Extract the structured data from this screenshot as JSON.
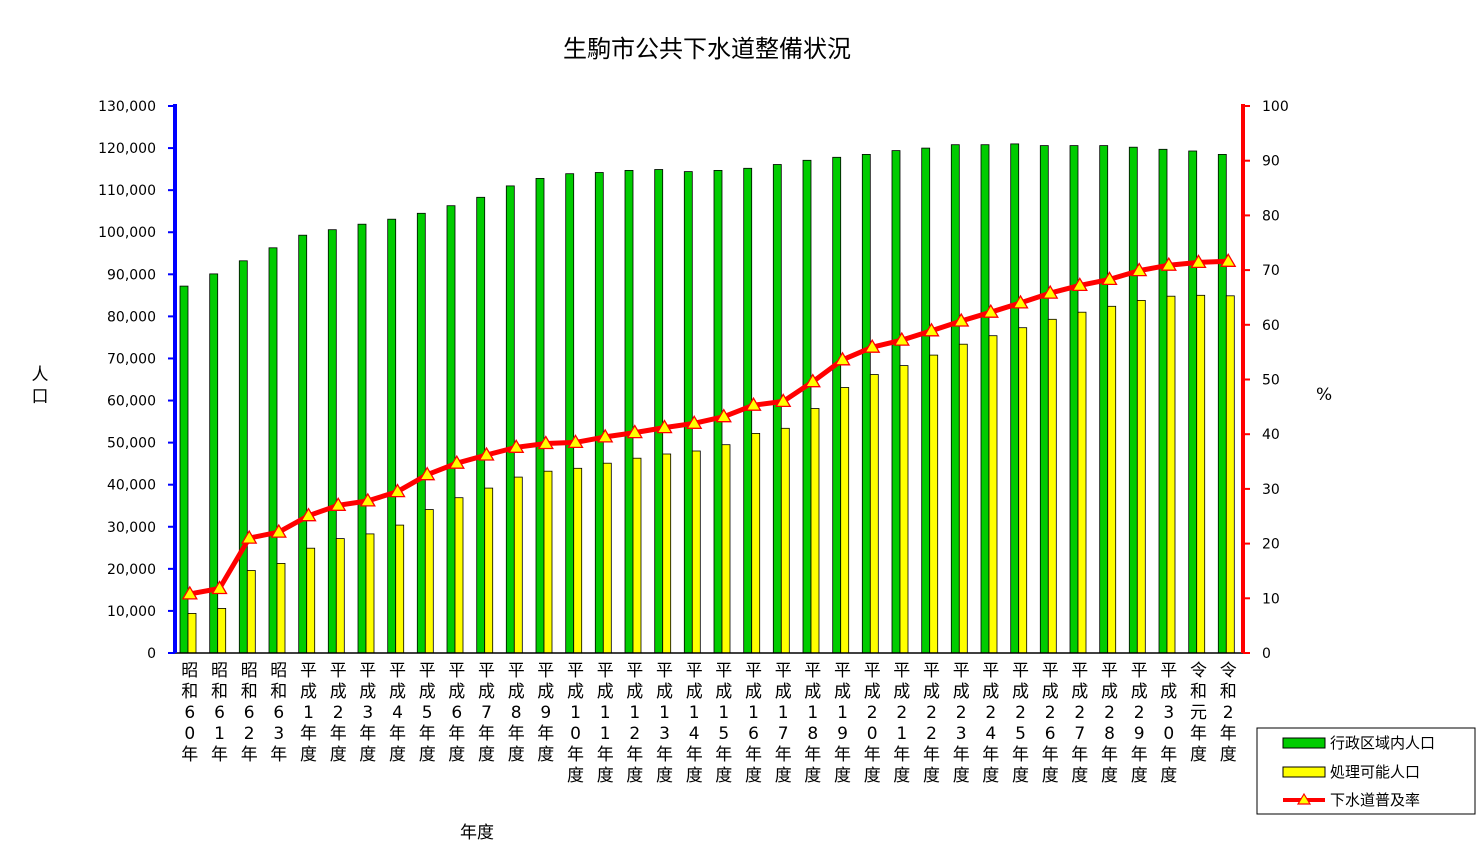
{
  "chart_data": {
    "type": "bar",
    "title": "生駒市公共下水道整備状況",
    "xlabel": "年度",
    "ylabel": "人口",
    "y2label": "%",
    "ylim": [
      0,
      130000
    ],
    "y2lim": [
      0,
      100
    ],
    "yticks": [
      "0",
      "10,000",
      "20,000",
      "30,000",
      "40,000",
      "50,000",
      "60,000",
      "70,000",
      "80,000",
      "90,000",
      "100,000",
      "110,000",
      "120,000",
      "130,000"
    ],
    "y2ticks": [
      "0",
      "10",
      "20",
      "30",
      "40",
      "50",
      "60",
      "70",
      "80",
      "90",
      "100"
    ],
    "categories": [
      "昭和60年",
      "昭和61年",
      "昭和62年",
      "昭和63年",
      "平成1年度",
      "平成2年度",
      "平成3年度",
      "平成4年度",
      "平成5年度",
      "平成6年度",
      "平成7年度",
      "平成8年度",
      "平成9年度",
      "平成10年度",
      "平成11年度",
      "平成12年度",
      "平成13年度",
      "平成14年度",
      "平成15年度",
      "平成16年度",
      "平成17年度",
      "平成18年度",
      "平成19年度",
      "平成20年度",
      "平成21年度",
      "平成22年度",
      "平成23年度",
      "平成24年度",
      "平成25年度",
      "平成26年度",
      "平成27年度",
      "平成28年度",
      "平成29年度",
      "平成30年度",
      "令和元年度",
      "令和2年度"
    ],
    "series": [
      {
        "name": "行政区域内人口",
        "type": "bar",
        "axis": "left",
        "color": "#00cc00",
        "values": [
          87200,
          90100,
          93200,
          96300,
          99300,
          100600,
          101900,
          103100,
          104500,
          106300,
          108300,
          111000,
          112800,
          113900,
          114200,
          114700,
          114900,
          114400,
          114700,
          115200,
          116100,
          117100,
          117800,
          118500,
          119400,
          120000,
          120800,
          120800,
          121000,
          120600,
          120600,
          120600,
          120200,
          119700,
          119300,
          118500
        ]
      },
      {
        "name": "処理可能人口",
        "type": "bar",
        "axis": "left",
        "color": "#ffff00",
        "values": [
          9400,
          10600,
          19600,
          21300,
          24900,
          27200,
          28300,
          30400,
          34100,
          36900,
          39200,
          41800,
          43200,
          43900,
          45100,
          46300,
          47300,
          48000,
          49500,
          52200,
          53400,
          58100,
          63100,
          66200,
          68300,
          70800,
          73400,
          75400,
          77300,
          79300,
          81000,
          82400,
          83800,
          84800,
          85000,
          84900
        ]
      },
      {
        "name": "下水道普及率",
        "type": "line",
        "axis": "right",
        "color": "#ff0000",
        "marker_color": "#ffff00",
        "values": [
          10.8,
          11.8,
          21.0,
          22.1,
          25.1,
          27.0,
          27.8,
          29.5,
          32.6,
          34.7,
          36.2,
          37.6,
          38.3,
          38.5,
          39.5,
          40.3,
          41.2,
          42.0,
          43.2,
          45.3,
          46.0,
          49.6,
          53.6,
          55.9,
          57.2,
          58.9,
          60.7,
          62.3,
          64.0,
          65.8,
          67.2,
          68.3,
          69.9,
          70.9,
          71.4,
          71.6
        ]
      }
    ],
    "legend": {
      "position": "bottom-right",
      "entries": [
        "行政区域内人口",
        "処理可能人口",
        "下水道普及率"
      ]
    },
    "grid": false
  }
}
